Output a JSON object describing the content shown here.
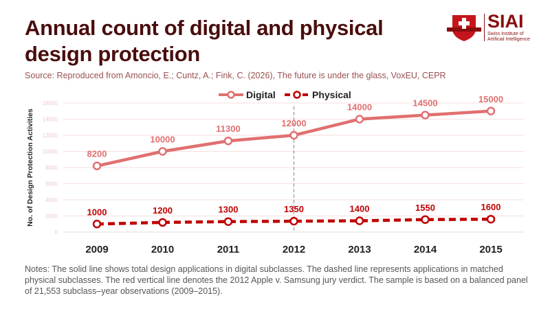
{
  "title": "Annual count of digital and physical design protection",
  "source": "Source: Reproduced from Amoncio, E.; Cuntz, A.; Fink, C. (2026), The future is under the glass, VoxEU, CEPR",
  "notes": "Notes: The solid line shows total design applications in digital subclasses. The dashed line represents applications in matched physical subclasses. The red vertical line denotes the 2012 Apple v. Samsung jury verdict. The sample is based on a balanced panel of 21,553 subclass–year observations (2009–2015).",
  "logo": {
    "name": "SIAI",
    "subtitle_1": "Swiss Institute of",
    "subtitle_2": "Artificial Intelligence"
  },
  "chart_data": {
    "type": "line",
    "title": "Annual count of digital and physical design protection",
    "xlabel": "",
    "ylabel": "No. of Design Protection Activities",
    "categories": [
      "2009",
      "2010",
      "2011",
      "2012",
      "2013",
      "2014",
      "2015"
    ],
    "ylim": [
      0,
      16000
    ],
    "yticks": [
      0,
      2000,
      4000,
      6000,
      8000,
      10000,
      12000,
      14000,
      16000
    ],
    "grid": true,
    "legend": "top-center",
    "vline": {
      "x": "2012",
      "style": "dashed"
    },
    "series": [
      {
        "name": "Digital",
        "values": [
          8200,
          10000,
          11300,
          12000,
          14000,
          14500,
          15000
        ],
        "color": "#e07070",
        "style": "solid"
      },
      {
        "name": "Physical",
        "values": [
          1000,
          1200,
          1300,
          1350,
          1400,
          1550,
          1600
        ],
        "color": "#c00000",
        "style": "dashed"
      }
    ]
  }
}
